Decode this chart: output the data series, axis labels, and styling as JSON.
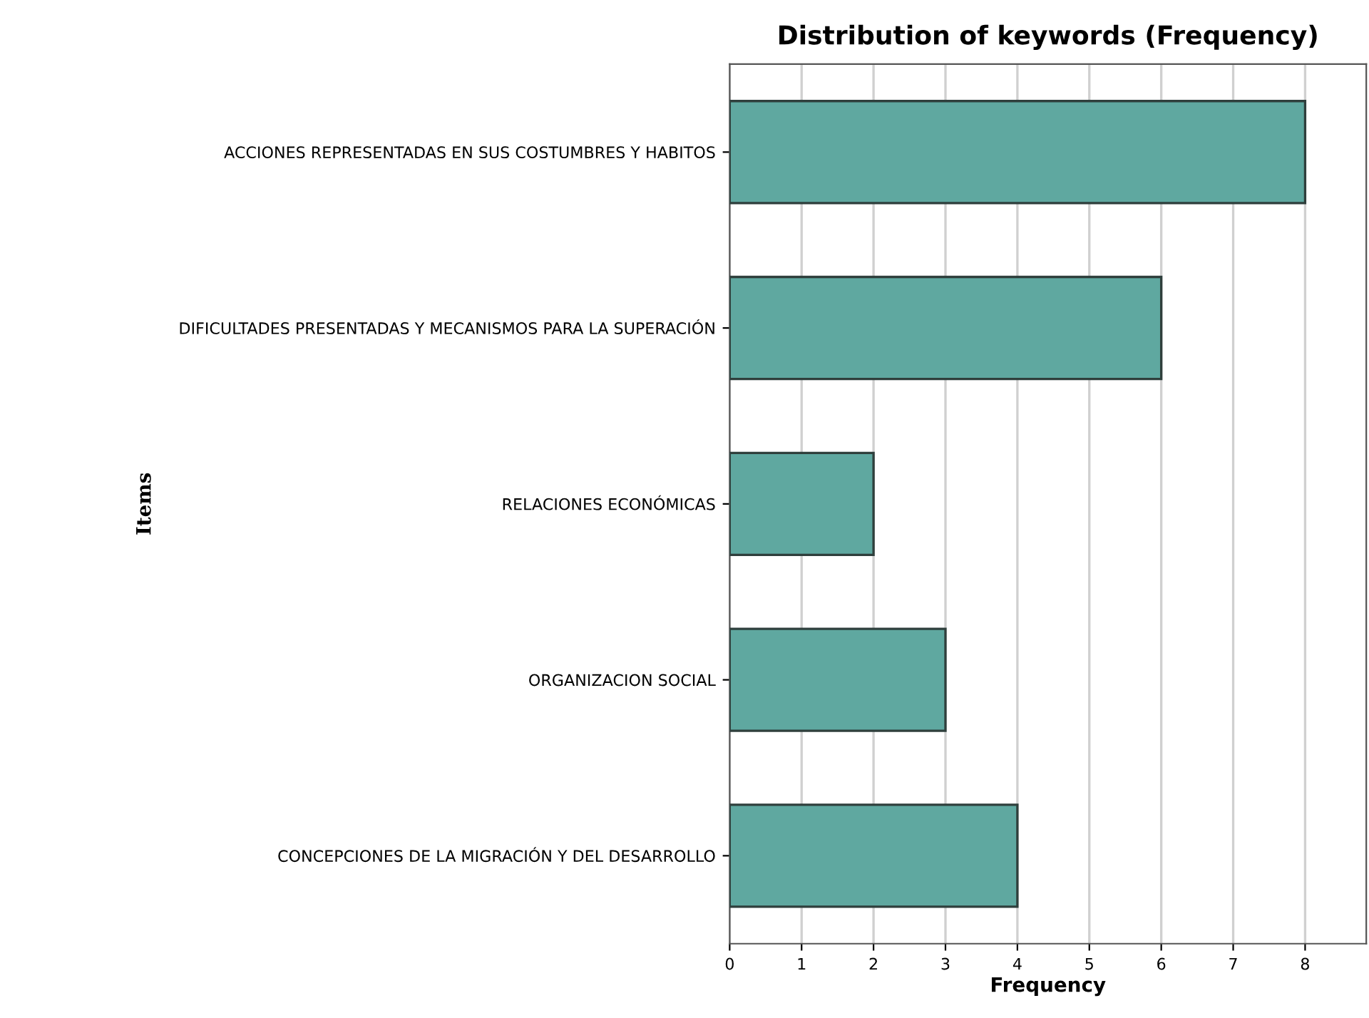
{
  "chart_data": {
    "type": "bar",
    "orientation": "horizontal",
    "title": "Distribution of keywords (Frequency)",
    "xlabel": "Frequency",
    "ylabel": "Items",
    "categories": [
      "ACCIONES REPRESENTADAS EN SUS COSTUMBRES Y HABITOS",
      "DIFICULTADES PRESENTADAS Y MECANISMOS PARA LA SUPERACIÓN",
      "RELACIONES ECONÓMICAS",
      "ORGANIZACION SOCIAL",
      "CONCEPCIONES DE LA MIGRACIÓN Y DEL DESARROLLO"
    ],
    "values": [
      8,
      6,
      2,
      3,
      4
    ],
    "color": "#5fa8a0",
    "xlim": [
      0,
      8.85
    ],
    "xticks": [
      0,
      1,
      2,
      3,
      4,
      5,
      6,
      7,
      8
    ],
    "grid": "x",
    "legend": false
  }
}
